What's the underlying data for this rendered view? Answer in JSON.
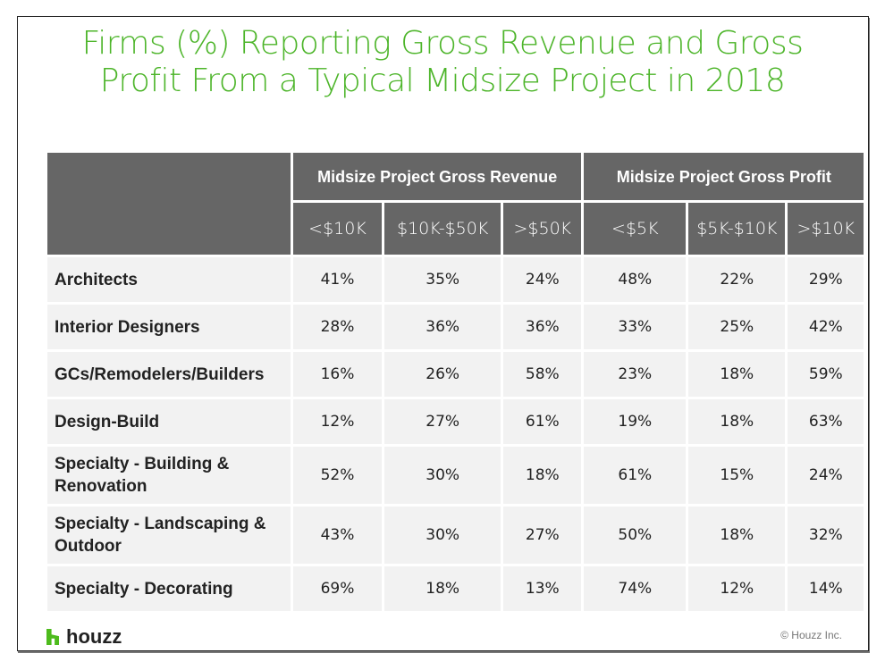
{
  "title_line1": "Firms (%) Reporting Gross Revenue and Gross",
  "title_line2": "Profit From a Typical Midsize Project in 2018",
  "chart_data": {
    "type": "table",
    "title": "Firms (%) Reporting Gross Revenue and Gross Profit From a Typical Midsize Project in 2018",
    "groups": [
      {
        "name": "Midsize Project Gross Revenue",
        "columns": [
          "<$10K",
          "$10K-$50K",
          ">$50K"
        ]
      },
      {
        "name": "Midsize Project Gross Profit",
        "columns": [
          "<$5K",
          "$5K-$10K",
          ">$10K"
        ]
      }
    ],
    "rows": [
      {
        "label": "Architects",
        "values": [
          "41%",
          "35%",
          "24%",
          "48%",
          "22%",
          "29%"
        ]
      },
      {
        "label": "Interior Designers",
        "values": [
          "28%",
          "36%",
          "36%",
          "33%",
          "25%",
          "42%"
        ]
      },
      {
        "label": "GCs/Remodelers/Builders",
        "values": [
          "16%",
          "26%",
          "58%",
          "23%",
          "18%",
          "59%"
        ]
      },
      {
        "label": "Design-Build",
        "values": [
          "12%",
          "27%",
          "61%",
          "19%",
          "18%",
          "63%"
        ]
      },
      {
        "label": "Specialty - Building & Renovation",
        "values": [
          "52%",
          "30%",
          "18%",
          "61%",
          "15%",
          "24%"
        ]
      },
      {
        "label": "Specialty - Landscaping & Outdoor",
        "values": [
          "43%",
          "30%",
          "27%",
          "50%",
          "18%",
          "32%"
        ]
      },
      {
        "label": "Specialty - Decorating",
        "values": [
          "69%",
          "18%",
          "13%",
          "74%",
          "12%",
          "14%"
        ]
      }
    ]
  },
  "footer": {
    "logo": "houzz",
    "copyright": "© Houzz Inc."
  },
  "colors": {
    "title": "#4db52a",
    "header": "#666666",
    "cell": "#f2f2f2",
    "logo": "#4dbb1d"
  }
}
